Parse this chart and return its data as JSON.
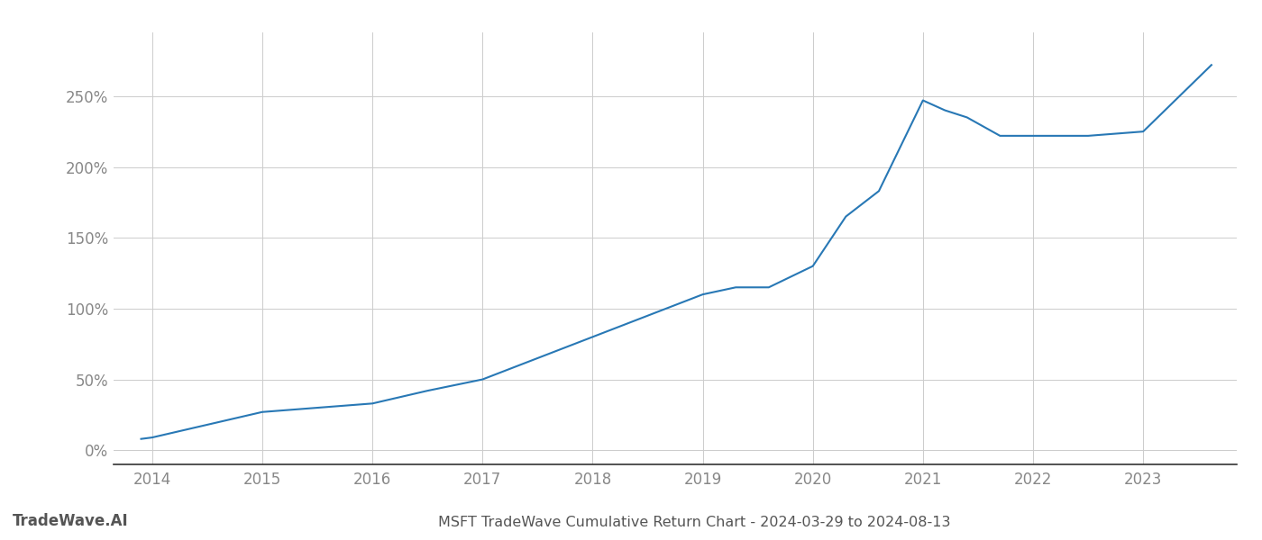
{
  "title": "MSFT TradeWave Cumulative Return Chart - 2024-03-29 to 2024-08-13",
  "watermark": "TradeWave.AI",
  "line_color": "#2878b5",
  "background_color": "#ffffff",
  "grid_color": "#cccccc",
  "x_years": [
    2013.9,
    2014.0,
    2014.5,
    2015.0,
    2015.5,
    2016.0,
    2016.5,
    2017.0,
    2017.5,
    2018.0,
    2018.5,
    2019.0,
    2019.3,
    2019.6,
    2020.0,
    2020.3,
    2020.6,
    2021.0,
    2021.2,
    2021.4,
    2021.7,
    2022.0,
    2022.3,
    2022.5,
    2023.0,
    2023.62
  ],
  "y_values": [
    8,
    9,
    18,
    27,
    30,
    33,
    42,
    50,
    65,
    80,
    95,
    110,
    115,
    115,
    130,
    165,
    183,
    247,
    240,
    235,
    222,
    222,
    222,
    222,
    225,
    272
  ],
  "ylim": [
    -10,
    295
  ],
  "xlim": [
    2013.65,
    2023.85
  ],
  "yticks": [
    0,
    50,
    100,
    150,
    200,
    250
  ],
  "ytick_labels": [
    "0%",
    "50%",
    "100%",
    "150%",
    "200%",
    "250%"
  ],
  "xticks": [
    2014,
    2015,
    2016,
    2017,
    2018,
    2019,
    2020,
    2021,
    2022,
    2023
  ],
  "title_fontsize": 11.5,
  "tick_fontsize": 12,
  "watermark_fontsize": 12,
  "line_width": 1.5
}
